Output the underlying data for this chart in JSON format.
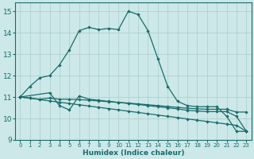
{
  "xlabel": "Humidex (Indice chaleur)",
  "xlim": [
    -0.5,
    23.5
  ],
  "ylim": [
    9,
    15.4
  ],
  "yticks": [
    9,
    10,
    11,
    12,
    13,
    14,
    15
  ],
  "xticks": [
    0,
    1,
    2,
    3,
    4,
    5,
    6,
    7,
    8,
    9,
    10,
    11,
    12,
    13,
    14,
    15,
    16,
    17,
    18,
    19,
    20,
    21,
    22,
    23
  ],
  "bg_color": "#cce8e8",
  "line_color": "#1a6b6b",
  "grid_color": "#aacccc",
  "lines": [
    {
      "x": [
        0,
        1,
        2,
        3,
        4,
        5,
        6,
        7,
        8,
        9,
        10,
        11,
        12,
        13,
        14,
        15,
        16,
        17,
        18,
        19,
        20,
        21,
        22,
        23
      ],
      "y": [
        11.0,
        11.5,
        11.9,
        12.0,
        12.5,
        13.2,
        14.1,
        14.25,
        14.15,
        14.2,
        14.15,
        15.0,
        14.85,
        14.1,
        12.8,
        11.5,
        10.8,
        10.6,
        10.55,
        10.55,
        10.55,
        10.1,
        9.4,
        9.4
      ]
    },
    {
      "x": [
        0,
        3,
        4,
        5,
        6,
        7,
        8,
        9,
        10,
        11,
        12,
        13,
        14,
        15,
        16,
        17,
        18,
        19,
        20,
        21,
        22,
        23
      ],
      "y": [
        11.0,
        11.2,
        10.6,
        10.4,
        11.05,
        10.9,
        10.85,
        10.8,
        10.75,
        10.7,
        10.65,
        10.6,
        10.55,
        10.5,
        10.45,
        10.38,
        10.35,
        10.32,
        10.32,
        10.32,
        10.1,
        9.4
      ]
    },
    {
      "x": [
        0,
        1,
        2,
        3,
        4,
        5,
        6,
        7,
        8,
        9,
        10,
        11,
        12,
        13,
        14,
        15,
        16,
        17,
        18,
        19,
        20,
        21,
        22,
        23
      ],
      "y": [
        11.0,
        10.95,
        10.9,
        10.95,
        10.9,
        10.9,
        10.88,
        10.85,
        10.82,
        10.78,
        10.75,
        10.72,
        10.68,
        10.64,
        10.6,
        10.56,
        10.52,
        10.48,
        10.45,
        10.43,
        10.43,
        10.43,
        10.3,
        10.3
      ]
    },
    {
      "x": [
        0,
        1,
        2,
        3,
        4,
        5,
        6,
        7,
        8,
        9,
        10,
        11,
        12,
        13,
        14,
        15,
        16,
        17,
        18,
        19,
        20,
        21,
        22,
        23
      ],
      "y": [
        11.0,
        10.95,
        10.88,
        10.82,
        10.76,
        10.7,
        10.64,
        10.58,
        10.52,
        10.46,
        10.4,
        10.34,
        10.28,
        10.22,
        10.16,
        10.1,
        10.04,
        9.98,
        9.92,
        9.86,
        9.8,
        9.74,
        9.68,
        9.4
      ]
    }
  ]
}
